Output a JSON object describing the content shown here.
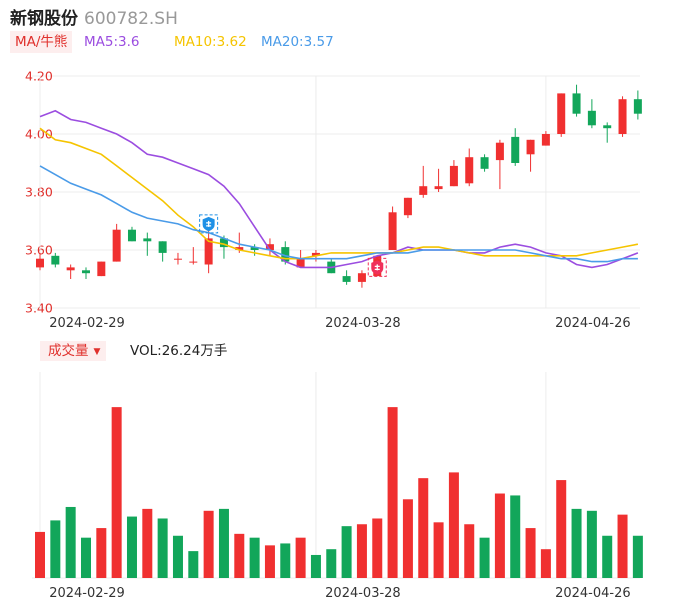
{
  "header": {
    "name": "新钢股份",
    "code": "600782.SH"
  },
  "ma_legend": {
    "tag": "MA/牛熊",
    "ma5": "MA5:3.6",
    "ma10": "MA10:3.62",
    "ma20": "MA20:3.57",
    "colors": {
      "ma5": "#9b4de0",
      "ma10": "#f5c400",
      "ma20": "#4a9be8",
      "tag": "#e0302c"
    }
  },
  "volume_legend": {
    "tag": "成交量",
    "caret": "▼",
    "value": "VOL:26.24万手"
  },
  "colors": {
    "up": "#f03030",
    "down": "#12a65a",
    "grid": "#ececec",
    "axis_text": "#e0302c",
    "date_text": "#333333"
  },
  "markers": {
    "low_icon": "shield-blue-icon",
    "high_icon": "shield-red-icon"
  },
  "chart_data": [
    {
      "type": "candlestick",
      "y_tick_labels": [
        "4.20",
        "4.00",
        "3.80",
        "3.60",
        "3.40"
      ],
      "ylim": [
        3.38,
        4.22
      ],
      "x_tick_labels": [
        "2024-02-29",
        "2024-03-28",
        "2024-04-26"
      ],
      "x_tick_index": [
        0,
        18,
        33
      ],
      "grid": true,
      "candles": [
        {
          "o": 3.54,
          "h": 3.59,
          "l": 3.53,
          "c": 3.57
        },
        {
          "o": 3.58,
          "h": 3.59,
          "l": 3.54,
          "c": 3.55
        },
        {
          "o": 3.53,
          "h": 3.55,
          "l": 3.5,
          "c": 3.54
        },
        {
          "o": 3.53,
          "h": 3.54,
          "l": 3.5,
          "c": 3.52
        },
        {
          "o": 3.51,
          "h": 3.56,
          "l": 3.51,
          "c": 3.56
        },
        {
          "o": 3.56,
          "h": 3.69,
          "l": 3.56,
          "c": 3.67
        },
        {
          "o": 3.67,
          "h": 3.68,
          "l": 3.63,
          "c": 3.63
        },
        {
          "o": 3.64,
          "h": 3.66,
          "l": 3.58,
          "c": 3.63
        },
        {
          "o": 3.63,
          "h": 3.63,
          "l": 3.56,
          "c": 3.59
        },
        {
          "o": 3.57,
          "h": 3.59,
          "l": 3.55,
          "c": 3.57
        },
        {
          "o": 3.56,
          "h": 3.61,
          "l": 3.55,
          "c": 3.56
        },
        {
          "o": 3.55,
          "h": 3.67,
          "l": 3.52,
          "c": 3.64
        },
        {
          "o": 3.64,
          "h": 3.65,
          "l": 3.57,
          "c": 3.61
        },
        {
          "o": 3.6,
          "h": 3.66,
          "l": 3.59,
          "c": 3.61
        },
        {
          "o": 3.61,
          "h": 3.62,
          "l": 3.58,
          "c": 3.6
        },
        {
          "o": 3.6,
          "h": 3.64,
          "l": 3.58,
          "c": 3.62
        },
        {
          "o": 3.61,
          "h": 3.63,
          "l": 3.55,
          "c": 3.56
        },
        {
          "o": 3.54,
          "h": 3.6,
          "l": 3.54,
          "c": 3.57
        },
        {
          "o": 3.58,
          "h": 3.6,
          "l": 3.56,
          "c": 3.59
        },
        {
          "o": 3.56,
          "h": 3.57,
          "l": 3.52,
          "c": 3.52
        },
        {
          "o": 3.51,
          "h": 3.53,
          "l": 3.48,
          "c": 3.49
        },
        {
          "o": 3.49,
          "h": 3.53,
          "l": 3.47,
          "c": 3.52
        },
        {
          "o": 3.51,
          "h": 3.58,
          "l": 3.51,
          "c": 3.58
        },
        {
          "o": 3.6,
          "h": 3.75,
          "l": 3.6,
          "c": 3.73
        },
        {
          "o": 3.72,
          "h": 3.78,
          "l": 3.71,
          "c": 3.78
        },
        {
          "o": 3.79,
          "h": 3.89,
          "l": 3.78,
          "c": 3.82
        },
        {
          "o": 3.81,
          "h": 3.88,
          "l": 3.8,
          "c": 3.82
        },
        {
          "o": 3.82,
          "h": 3.91,
          "l": 3.82,
          "c": 3.89
        },
        {
          "o": 3.83,
          "h": 3.95,
          "l": 3.82,
          "c": 3.92
        },
        {
          "o": 3.92,
          "h": 3.93,
          "l": 3.87,
          "c": 3.88
        },
        {
          "o": 3.91,
          "h": 3.98,
          "l": 3.81,
          "c": 3.97
        },
        {
          "o": 3.99,
          "h": 4.02,
          "l": 3.89,
          "c": 3.9
        },
        {
          "o": 3.93,
          "h": 3.98,
          "l": 3.87,
          "c": 3.98
        },
        {
          "o": 3.96,
          "h": 4.01,
          "l": 3.96,
          "c": 4.0
        },
        {
          "o": 4.0,
          "h": 4.14,
          "l": 3.99,
          "c": 4.14
        },
        {
          "o": 4.14,
          "h": 4.17,
          "l": 4.06,
          "c": 4.07
        },
        {
          "o": 4.08,
          "h": 4.12,
          "l": 4.02,
          "c": 4.03
        },
        {
          "o": 4.03,
          "h": 4.04,
          "l": 3.97,
          "c": 4.02
        },
        {
          "o": 4.0,
          "h": 4.13,
          "l": 3.99,
          "c": 4.12
        },
        {
          "o": 4.12,
          "h": 4.15,
          "l": 4.05,
          "c": 4.07
        }
      ],
      "ma_lines": [
        {
          "name": "MA5",
          "values": [
            4.06,
            4.08,
            4.05,
            4.04,
            4.02,
            4.0,
            3.97,
            3.93,
            3.92,
            3.9,
            3.88,
            3.86,
            3.82,
            3.76,
            3.68,
            3.6,
            3.56,
            3.54,
            3.54,
            3.54,
            3.55,
            3.56,
            3.58,
            3.59,
            3.61,
            3.6,
            3.6,
            3.6,
            3.59,
            3.59,
            3.61,
            3.62,
            3.61,
            3.59,
            3.58,
            3.55,
            3.54,
            3.55,
            3.57,
            3.59
          ]
        },
        {
          "name": "MA10",
          "values": [
            4.02,
            3.98,
            3.97,
            3.95,
            3.93,
            3.89,
            3.85,
            3.81,
            3.77,
            3.72,
            3.68,
            3.63,
            3.62,
            3.6,
            3.59,
            3.58,
            3.57,
            3.57,
            3.58,
            3.59,
            3.59,
            3.59,
            3.59,
            3.59,
            3.6,
            3.61,
            3.61,
            3.6,
            3.59,
            3.58,
            3.58,
            3.58,
            3.58,
            3.58,
            3.58,
            3.58,
            3.59,
            3.6,
            3.61,
            3.62
          ]
        },
        {
          "name": "MA20",
          "values": [
            3.89,
            3.86,
            3.83,
            3.81,
            3.79,
            3.76,
            3.73,
            3.71,
            3.7,
            3.69,
            3.67,
            3.66,
            3.64,
            3.62,
            3.61,
            3.6,
            3.58,
            3.57,
            3.57,
            3.57,
            3.57,
            3.58,
            3.59,
            3.59,
            3.59,
            3.6,
            3.6,
            3.6,
            3.6,
            3.6,
            3.6,
            3.6,
            3.59,
            3.58,
            3.57,
            3.57,
            3.56,
            3.56,
            3.57,
            3.57
          ]
        }
      ],
      "annotations": [
        {
          "type": "marker",
          "icon": "shield-blue-icon",
          "index": 11,
          "value": 3.69
        },
        {
          "type": "marker",
          "icon": "shield-red-icon",
          "index": 22,
          "value": 3.54
        }
      ]
    },
    {
      "type": "bar",
      "name": "成交量",
      "x_tick_labels": [
        "2024-02-29",
        "2024-03-28",
        "2024-04-26"
      ],
      "x_tick_index": [
        0,
        18,
        33
      ],
      "ylim": [
        0,
        100
      ],
      "values": [
        24,
        30,
        37,
        21,
        26,
        89,
        32,
        36,
        31,
        22,
        14,
        35,
        36,
        23,
        21,
        17,
        18,
        21,
        12,
        15,
        27,
        28,
        31,
        89,
        41,
        52,
        29,
        55,
        28,
        21,
        44,
        43,
        26,
        15,
        51,
        36,
        35,
        22,
        33,
        22
      ],
      "direction": [
        "up",
        "down",
        "down",
        "down",
        "up",
        "up",
        "down",
        "up",
        "down",
        "down",
        "down",
        "up",
        "down",
        "up",
        "down",
        "up",
        "down",
        "up",
        "down",
        "down",
        "down",
        "up",
        "up",
        "up",
        "up",
        "up",
        "up",
        "up",
        "up",
        "down",
        "up",
        "down",
        "up",
        "up",
        "up",
        "down",
        "down",
        "down",
        "up",
        "down"
      ]
    }
  ]
}
